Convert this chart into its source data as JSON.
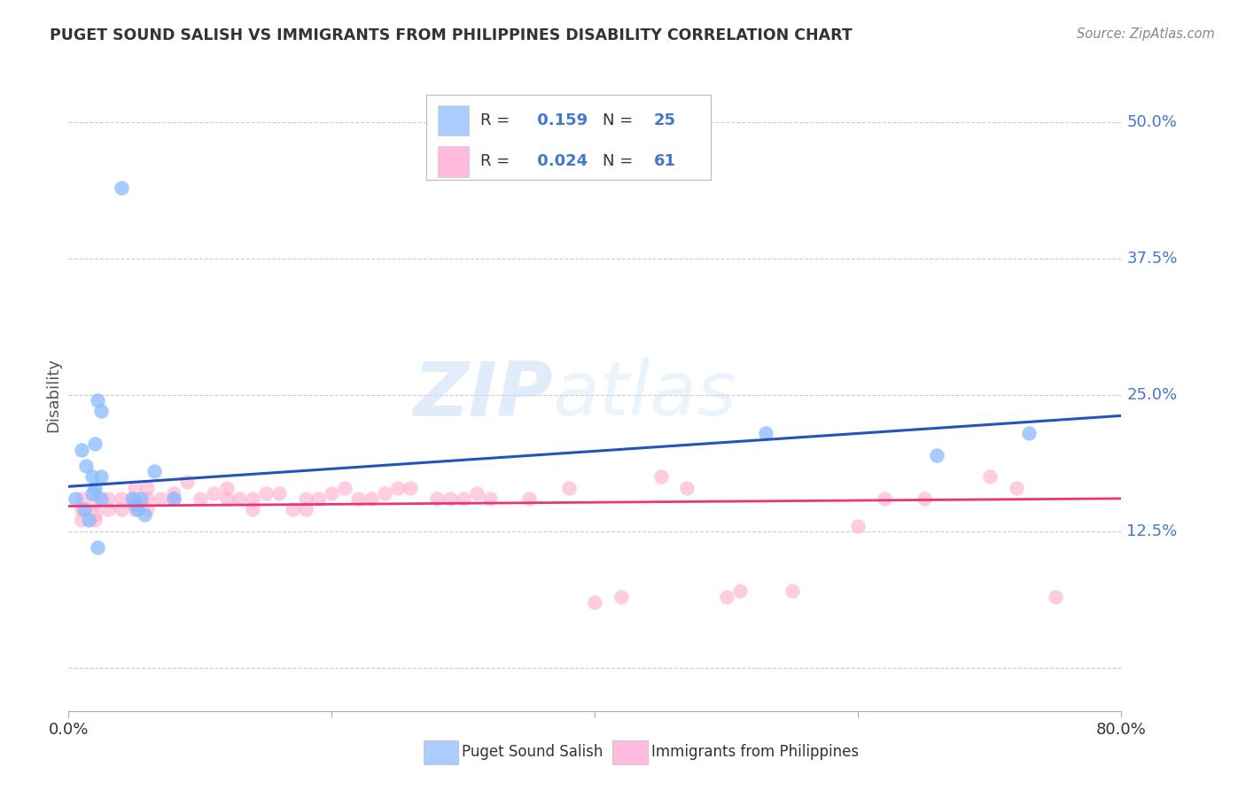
{
  "title": "PUGET SOUND SALISH VS IMMIGRANTS FROM PHILIPPINES DISABILITY CORRELATION CHART",
  "source": "Source: ZipAtlas.com",
  "ylabel": "Disability",
  "xlim": [
    0.0,
    0.8
  ],
  "ylim": [
    -0.04,
    0.54
  ],
  "yticks": [
    0.0,
    0.125,
    0.25,
    0.375,
    0.5
  ],
  "ytick_labels": [
    "",
    "12.5%",
    "25.0%",
    "37.5%",
    "50.0%"
  ],
  "xticks": [
    0.0,
    0.2,
    0.4,
    0.6,
    0.8
  ],
  "xtick_labels": [
    "0.0%",
    "",
    "",
    "",
    "80.0%"
  ],
  "blue_R": "0.159",
  "blue_N": "25",
  "pink_R": "0.024",
  "pink_N": "61",
  "blue_dot_color": "#88bbff",
  "pink_dot_color": "#ffaacc",
  "blue_legend_color": "#aaccff",
  "pink_legend_color": "#ffbbdd",
  "blue_line_color": "#2255bb",
  "pink_line_color": "#ee3377",
  "legend_text_color": "#333333",
  "legend_value_color": "#4477cc",
  "title_color": "#333333",
  "source_color": "#888888",
  "ylabel_color": "#555555",
  "xtick_color": "#333333",
  "ytick_color": "#4477cc",
  "grid_color": "#cccccc",
  "watermark_zip": "ZIP",
  "watermark_atlas": "atlas",
  "background_color": "#ffffff",
  "blue_points_x": [
    0.04,
    0.025,
    0.02,
    0.01,
    0.013,
    0.018,
    0.025,
    0.02,
    0.018,
    0.025,
    0.048,
    0.055,
    0.05,
    0.052,
    0.058,
    0.065,
    0.022,
    0.005,
    0.012,
    0.015,
    0.022,
    0.53,
    0.66,
    0.73,
    0.08
  ],
  "blue_points_y": [
    0.44,
    0.235,
    0.205,
    0.2,
    0.185,
    0.175,
    0.175,
    0.165,
    0.16,
    0.155,
    0.155,
    0.155,
    0.15,
    0.145,
    0.14,
    0.18,
    0.11,
    0.155,
    0.145,
    0.135,
    0.245,
    0.215,
    0.195,
    0.215,
    0.155
  ],
  "pink_points_x": [
    0.01,
    0.02,
    0.01,
    0.01,
    0.02,
    0.02,
    0.03,
    0.02,
    0.03,
    0.04,
    0.04,
    0.05,
    0.05,
    0.06,
    0.05,
    0.06,
    0.06,
    0.07,
    0.08,
    0.08,
    0.09,
    0.1,
    0.11,
    0.12,
    0.12,
    0.13,
    0.14,
    0.14,
    0.15,
    0.16,
    0.17,
    0.18,
    0.18,
    0.19,
    0.2,
    0.21,
    0.22,
    0.23,
    0.24,
    0.25,
    0.26,
    0.28,
    0.29,
    0.3,
    0.31,
    0.32,
    0.35,
    0.38,
    0.4,
    0.42,
    0.45,
    0.47,
    0.5,
    0.51,
    0.55,
    0.6,
    0.62,
    0.65,
    0.7,
    0.72,
    0.75
  ],
  "pink_points_y": [
    0.155,
    0.16,
    0.145,
    0.135,
    0.15,
    0.14,
    0.145,
    0.135,
    0.155,
    0.145,
    0.155,
    0.155,
    0.145,
    0.155,
    0.165,
    0.165,
    0.145,
    0.155,
    0.16,
    0.155,
    0.17,
    0.155,
    0.16,
    0.155,
    0.165,
    0.155,
    0.155,
    0.145,
    0.16,
    0.16,
    0.145,
    0.155,
    0.145,
    0.155,
    0.16,
    0.165,
    0.155,
    0.155,
    0.16,
    0.165,
    0.165,
    0.155,
    0.155,
    0.155,
    0.16,
    0.155,
    0.155,
    0.165,
    0.06,
    0.065,
    0.175,
    0.165,
    0.065,
    0.07,
    0.07,
    0.13,
    0.155,
    0.155,
    0.175,
    0.165,
    0.065
  ],
  "blue_line_x": [
    0.0,
    0.8
  ],
  "blue_line_y": [
    0.166,
    0.231
  ],
  "pink_line_x": [
    0.0,
    0.8
  ],
  "pink_line_y": [
    0.148,
    0.155
  ]
}
